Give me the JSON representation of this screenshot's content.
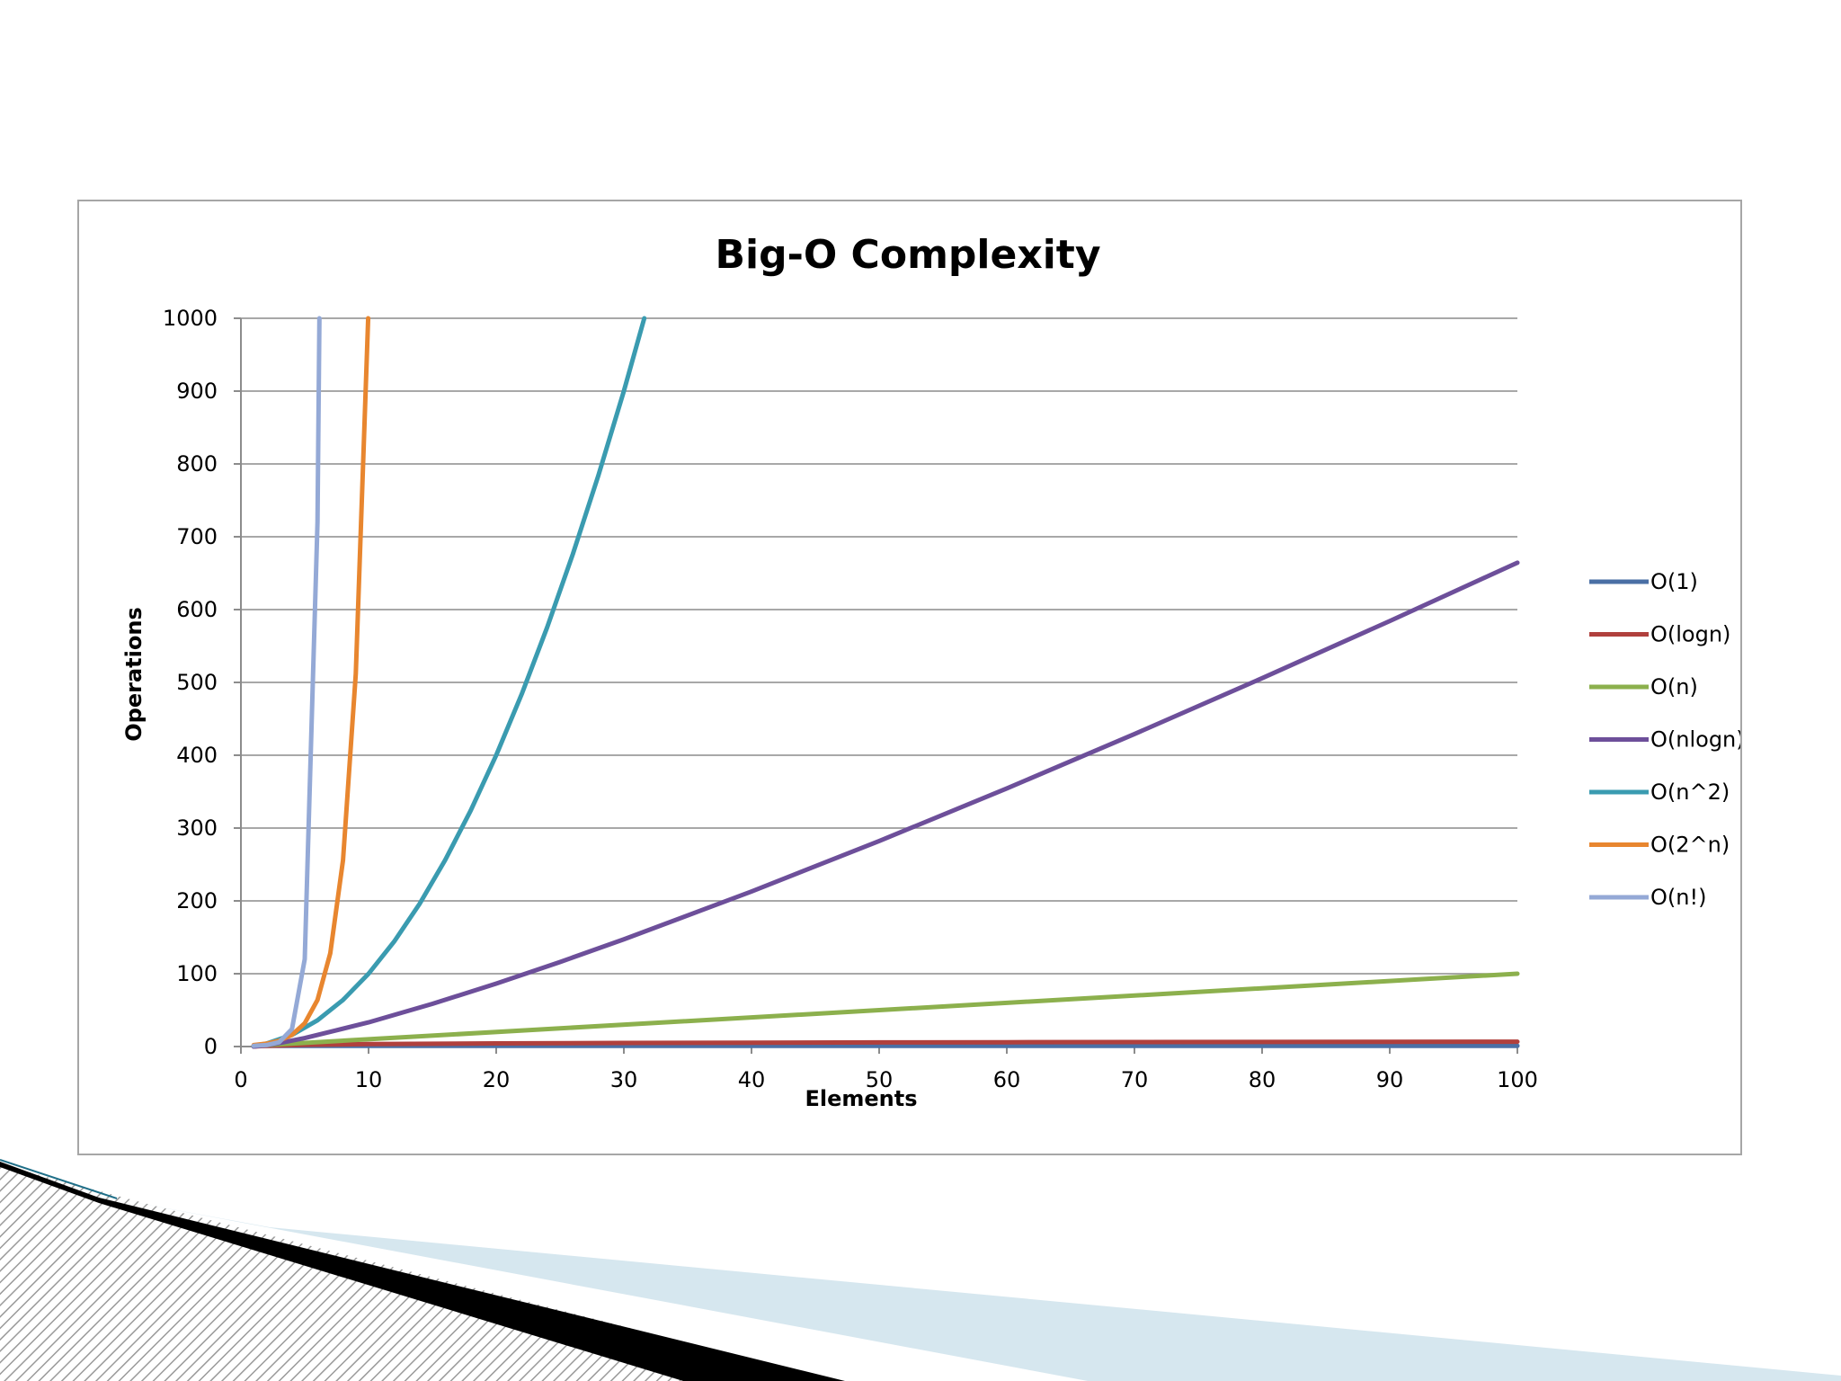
{
  "chart_data": {
    "type": "line",
    "title": "Big-O Complexity",
    "xlabel": "Elements",
    "ylabel": "Operations",
    "xlim": [
      0,
      100
    ],
    "ylim": [
      0,
      1000
    ],
    "x_ticks": [
      0,
      10,
      20,
      30,
      40,
      50,
      60,
      70,
      80,
      90,
      100
    ],
    "y_ticks": [
      0,
      100,
      200,
      300,
      400,
      500,
      600,
      700,
      800,
      900,
      1000
    ],
    "grid": true,
    "legend_position": "right",
    "series": [
      {
        "name": "O(1)",
        "color": "#4a6fa5",
        "x": [
          1,
          100
        ],
        "y": [
          1,
          1
        ]
      },
      {
        "name": "O(logn)",
        "color": "#b0403d",
        "x": [
          1,
          2,
          5,
          10,
          20,
          30,
          40,
          50,
          60,
          70,
          80,
          90,
          100
        ],
        "y": [
          0,
          1,
          2.32,
          3.32,
          4.32,
          4.91,
          5.32,
          5.64,
          5.91,
          6.13,
          6.32,
          6.49,
          6.64
        ]
      },
      {
        "name": "O(n)",
        "color": "#8cb04d",
        "x": [
          1,
          100
        ],
        "y": [
          1,
          100
        ]
      },
      {
        "name": "O(nlogn)",
        "color": "#6d4f9a",
        "x": [
          1,
          2,
          3,
          5,
          10,
          15,
          20,
          25,
          30,
          40,
          50,
          60,
          70,
          80,
          90,
          100
        ],
        "y": [
          0,
          2,
          4.75,
          11.6,
          33.2,
          58.6,
          86.4,
          116.1,
          147.2,
          212.9,
          282.2,
          354.4,
          429.1,
          505.8,
          584.3,
          664.4
        ]
      },
      {
        "name": "O(n^2)",
        "color": "#3a9bb0",
        "x": [
          1,
          2,
          4,
          6,
          8,
          10,
          12,
          14,
          16,
          18,
          20,
          22,
          24,
          26,
          28,
          30,
          31.6
        ],
        "y": [
          1,
          4,
          16,
          36,
          64,
          100,
          144,
          196,
          256,
          324,
          400,
          484,
          576,
          676,
          784,
          900,
          1000
        ]
      },
      {
        "name": "O(2^n)",
        "color": "#e8862f",
        "x": [
          1,
          2,
          3,
          4,
          5,
          6,
          7,
          8,
          9,
          9.97
        ],
        "y": [
          2,
          4,
          8,
          16,
          32,
          64,
          128,
          256,
          512,
          1000
        ]
      },
      {
        "name": "O(n!)",
        "color": "#94a9d6",
        "x": [
          1,
          2,
          3,
          4,
          5,
          6,
          6.15
        ],
        "y": [
          1,
          2,
          6,
          24,
          120,
          720,
          1000
        ]
      }
    ]
  }
}
